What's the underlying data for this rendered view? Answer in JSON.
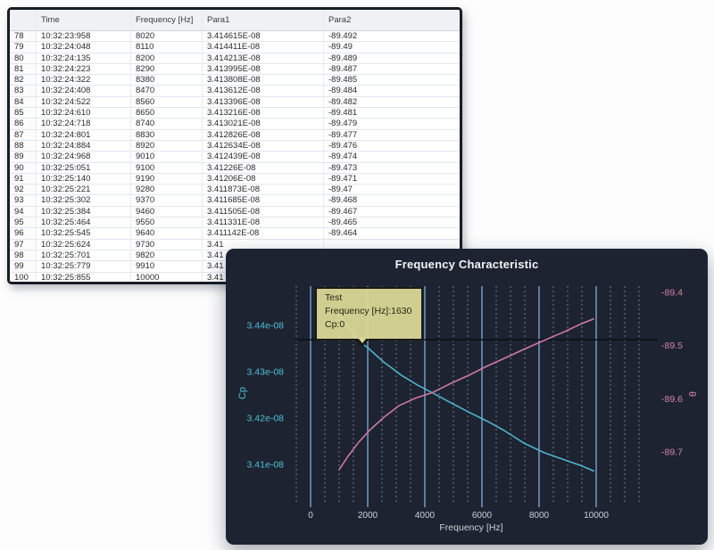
{
  "table": {
    "columns": [
      "",
      "Time",
      "Frequency [Hz]",
      "Para1",
      "Para2"
    ],
    "rows": [
      [
        "78",
        "10:32:23:958",
        "8020",
        "3.414615E-08",
        "-89.492"
      ],
      [
        "79",
        "10:32:24:048",
        "8110",
        "3.414411E-08",
        "-89.49"
      ],
      [
        "80",
        "10:32:24:135",
        "8200",
        "3.414213E-08",
        "-89.489"
      ],
      [
        "81",
        "10:32:24:223",
        "8290",
        "3.413995E-08",
        "-89.487"
      ],
      [
        "82",
        "10:32:24:322",
        "8380",
        "3.413808E-08",
        "-89.485"
      ],
      [
        "83",
        "10:32:24:408",
        "8470",
        "3.413612E-08",
        "-89.484"
      ],
      [
        "84",
        "10:32:24:522",
        "8560",
        "3.413396E-08",
        "-89.482"
      ],
      [
        "85",
        "10:32:24:610",
        "8650",
        "3.413216E-08",
        "-89.481"
      ],
      [
        "86",
        "10:32:24:718",
        "8740",
        "3.413021E-08",
        "-89.479"
      ],
      [
        "87",
        "10:32:24:801",
        "8830",
        "3.412826E-08",
        "-89.477"
      ],
      [
        "88",
        "10:32:24:884",
        "8920",
        "3.412634E-08",
        "-89.476"
      ],
      [
        "89",
        "10:32:24:968",
        "9010",
        "3.412439E-08",
        "-89.474"
      ],
      [
        "90",
        "10:32:25:051",
        "9100",
        "3.41226E-08",
        "-89.473"
      ],
      [
        "91",
        "10:32:25:140",
        "9190",
        "3.41206E-08",
        "-89.471"
      ],
      [
        "92",
        "10:32:25:221",
        "9280",
        "3.411873E-08",
        "-89.47"
      ],
      [
        "93",
        "10:32:25:302",
        "9370",
        "3.411685E-08",
        "-89.468"
      ],
      [
        "94",
        "10:32:25:384",
        "9460",
        "3.411505E-08",
        "-89.467"
      ],
      [
        "95",
        "10:32:25:464",
        "9550",
        "3.411331E-08",
        "-89.465"
      ],
      [
        "96",
        "10:32:25:545",
        "9640",
        "3.411142E-08",
        "-89.464"
      ],
      [
        "97",
        "10:32:25:624",
        "9730",
        "3.41",
        ""
      ],
      [
        "98",
        "10:32:25:701",
        "9820",
        "3.41",
        ""
      ],
      [
        "99",
        "10:32:25:779",
        "9910",
        "3.41",
        ""
      ],
      [
        "100",
        "10:32:25:855",
        "10000",
        "3.41",
        ""
      ]
    ]
  },
  "chart_data": {
    "type": "line",
    "title": "Frequency Characteristic",
    "xlabel": "Frequency [Hz]",
    "left_axis_label": "Cp",
    "right_axis_label": "θ",
    "x_ticks": [
      0,
      2000,
      4000,
      6000,
      8000,
      10000
    ],
    "x_minor": {
      "from": -500,
      "to": 11500,
      "step": 500
    },
    "x_range": [
      -560,
      12160
    ],
    "left_ticks": [
      {
        "label": "3.44e-08",
        "v": 3.44
      },
      {
        "label": "3.43e-08",
        "v": 3.43
      },
      {
        "label": "3.42e-08",
        "v": 3.42
      },
      {
        "label": "3.41e-08",
        "v": 3.41
      }
    ],
    "left_range_e8": [
      3.4015,
      3.4485
    ],
    "right_ticks": [
      {
        "label": "-89.4",
        "v": -89.4
      },
      {
        "label": "-89.5",
        "v": -89.5
      },
      {
        "label": "-89.6",
        "v": -89.6
      },
      {
        "label": "-89.7",
        "v": -89.7
      }
    ],
    "right_range": [
      -89.795,
      -89.388
    ],
    "crosshair_cp_e8": 3.4369,
    "series": [
      {
        "name": "Cp",
        "axis": "left",
        "color": "#4fb3cc",
        "points_freq_value_e8": [
          [
            950,
            3.4425
          ],
          [
            1470,
            3.4387
          ],
          [
            1630,
            3.4369
          ],
          [
            2000,
            3.4352
          ],
          [
            2560,
            3.4321
          ],
          [
            3190,
            3.4292
          ],
          [
            3750,
            3.4271
          ],
          [
            4280,
            3.4254
          ],
          [
            4910,
            3.4233
          ],
          [
            5530,
            3.4213
          ],
          [
            6160,
            3.4194
          ],
          [
            6780,
            3.4173
          ],
          [
            7470,
            3.4146
          ],
          [
            8190,
            3.4125
          ],
          [
            8880,
            3.411
          ],
          [
            9440,
            3.4098
          ],
          [
            9910,
            3.4086
          ]
        ]
      },
      {
        "name": "theta",
        "axis": "right",
        "color": "#cd7aa4",
        "points_freq_value": [
          [
            1000,
            -89.733
          ],
          [
            1310,
            -89.708
          ],
          [
            1690,
            -89.681
          ],
          [
            2090,
            -89.658
          ],
          [
            2560,
            -89.635
          ],
          [
            3090,
            -89.613
          ],
          [
            3660,
            -89.599
          ],
          [
            4280,
            -89.588
          ],
          [
            4910,
            -89.571
          ],
          [
            5530,
            -89.556
          ],
          [
            6160,
            -89.539
          ],
          [
            6780,
            -89.524
          ],
          [
            7470,
            -89.507
          ],
          [
            8190,
            -89.49
          ],
          [
            8880,
            -89.474
          ],
          [
            9440,
            -89.46
          ],
          [
            9910,
            -89.45
          ]
        ]
      }
    ],
    "tooltip": {
      "line1": "Test",
      "line2": "Frequency [Hz]:1630",
      "line3": "Cp:0",
      "anchor_freq": 1630
    },
    "colors": {
      "panel_bg": "#1d2330",
      "grid_major": "#5d7da2",
      "grid_minor": "#95a1b3",
      "left_axis": "#4cc2d9",
      "right_axis": "#d685ab",
      "x_labels": "#ccd2da",
      "crosshair": "#0b0f17",
      "tooltip_bg": "#dcda98"
    },
    "legend": "none",
    "grid": "vertical-only"
  }
}
